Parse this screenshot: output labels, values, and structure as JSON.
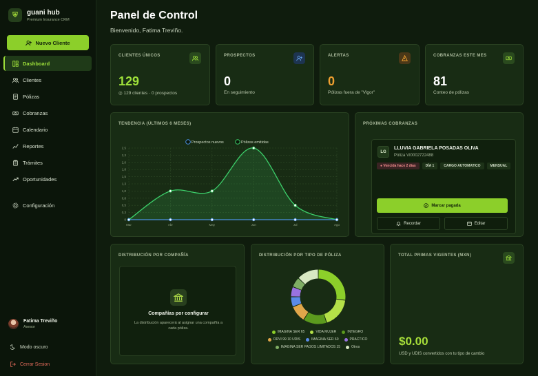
{
  "brand": {
    "name": "guani hub",
    "subtitle": "Premium Insurance CRM"
  },
  "sidebar": {
    "new_button": "Nuevo Cliente",
    "items": [
      {
        "label": "Dashboard",
        "icon": "dashboard-icon",
        "active": true
      },
      {
        "label": "Clientes",
        "icon": "users-icon"
      },
      {
        "label": "Pólizas",
        "icon": "document-icon"
      },
      {
        "label": "Cobranzas",
        "icon": "cash-icon"
      },
      {
        "label": "Calendario",
        "icon": "calendar-icon"
      },
      {
        "label": "Reportes",
        "icon": "chart-icon"
      },
      {
        "label": "Trámites",
        "icon": "clipboard-icon"
      },
      {
        "label": "Oportunidades",
        "icon": "trend-icon"
      }
    ],
    "config": "Configuración",
    "user": {
      "name": "Fatima Treviño",
      "role": "Asesor"
    },
    "dark_mode": "Modo oscuro",
    "logout": "Cerrar Sesion"
  },
  "header": {
    "title": "Panel de Control",
    "subtitle": "Bienvenido, Fatima Treviño."
  },
  "stats": [
    {
      "label": "Clientes únicos",
      "value": "129",
      "sub": "129 clientes · 0 prospectos",
      "icon": "users-icon",
      "color": "#9ee03a"
    },
    {
      "label": "Prospectos",
      "value": "0",
      "sub": "En seguimiento",
      "icon": "user-plus-icon",
      "color": "#ffffff"
    },
    {
      "label": "Alertas",
      "value": "0",
      "sub": "Pólizas fuera de \"Vigor\"",
      "icon": "warning-icon",
      "color": "#f0a030"
    },
    {
      "label": "Cobranzas este mes",
      "value": "81",
      "sub": "Conteo de pólizas",
      "icon": "cash-icon",
      "color": "#ffffff"
    }
  ],
  "trend": {
    "label": "Tendencia (últimos 6 meses)"
  },
  "chart_data": {
    "type": "line",
    "title": "Tendencia (últimos 6 meses)",
    "x": [
      "Mar",
      "Abr",
      "May",
      "Jun",
      "Jul",
      "Ago"
    ],
    "series": [
      {
        "name": "Prospectos nuevos",
        "values": [
          0,
          0,
          0,
          0,
          0,
          0
        ],
        "color": "#4a90e2"
      },
      {
        "name": "Pólizas emitidas",
        "values": [
          0,
          1,
          1,
          2.5,
          0.5,
          0
        ],
        "color": "#3ccf6a"
      }
    ],
    "yticks": [
      "0",
      "0,3",
      "0,5",
      "0,8",
      "1,0",
      "1,3",
      "1,5",
      "1,8",
      "2,0",
      "2,3",
      "2,5"
    ],
    "ylim": [
      0,
      2.5
    ],
    "legend": "top-center",
    "grid": true
  },
  "upcoming": {
    "label": "Próximas cobranzas",
    "initials": "LG",
    "client": "LLUVIA GABRIELA POSADAS OLIVA",
    "policy": "Póliza VI0002722488",
    "badges": [
      "Vencida hace 2 días",
      "DÍA 1",
      "CARGO AUTOMATICO",
      "MENSUAL"
    ],
    "pay": "Marcar pagada",
    "remind": "Recordar",
    "edit": "Editar"
  },
  "company": {
    "label": "Distribución por compañía",
    "empty_title": "Compañías por configurar",
    "empty_sub": "La distribución aparecerá al asignar una compañía a cada póliza."
  },
  "policy_type": {
    "label": "Distribución por tipo de póliza",
    "segments": [
      {
        "name": "IMAGINA SER 65",
        "value": 27,
        "color": "#8ccf2a"
      },
      {
        "name": "VIDA MUJER",
        "value": 18,
        "color": "#b4e048"
      },
      {
        "name": "INTEGRO",
        "value": 14,
        "color": "#5c9a1e"
      },
      {
        "name": "ORVI 99 10 UDIS",
        "value": 10,
        "color": "#e0a64a"
      },
      {
        "name": "IMAGINA SER 60",
        "value": 6,
        "color": "#5a8ae8"
      },
      {
        "name": "PRACTICO",
        "value": 6,
        "color": "#9a72e0"
      },
      {
        "name": "IMAGINA SER PAGOS LIMITADOS 15",
        "value": 6,
        "color": "#7fae64"
      },
      {
        "name": "Otros",
        "value": 13,
        "color": "#d8e8c2"
      }
    ]
  },
  "premiums": {
    "label": "Total primas vigentes (MXN)",
    "value": "$0.00",
    "sub": "USD y UDIS convertidos con tu tipo de cambio"
  }
}
